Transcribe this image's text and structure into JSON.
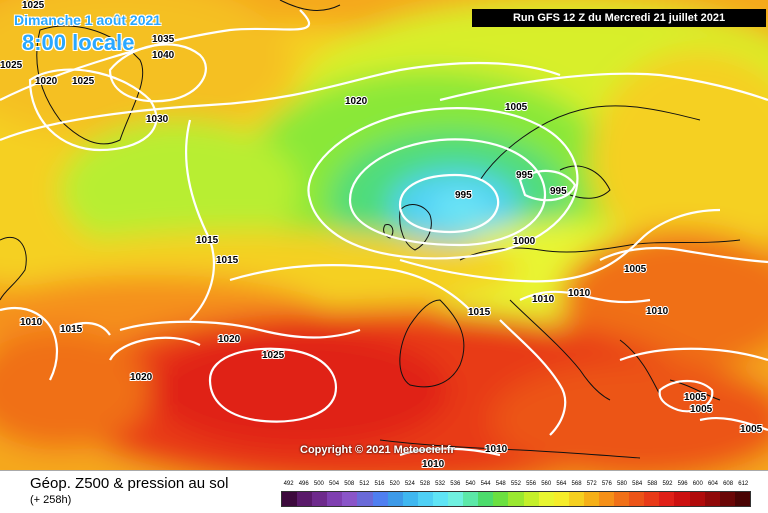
{
  "header": {
    "date": "Dimanche 1 août 2021",
    "time": "8:00 locale",
    "run_info": "Run GFS 12 Z du Mercredi 21 juillet 2021"
  },
  "copyright": "Copyright © 2021 Meteociel.fr",
  "legend": {
    "title": "Géop. Z500 & pression au sol",
    "subtitle": "(+ 258h)",
    "scale_values": [
      "492",
      "496",
      "500",
      "504",
      "508",
      "512",
      "516",
      "520",
      "524",
      "528",
      "532",
      "536",
      "540",
      "544",
      "548",
      "552",
      "556",
      "560",
      "564",
      "568",
      "572",
      "576",
      "580",
      "584",
      "588",
      "592",
      "596",
      "600",
      "604",
      "608",
      "612"
    ],
    "scale_colors": [
      "#3d0a3d",
      "#5a1a6a",
      "#6e2a8c",
      "#7f3fb0",
      "#8a55c8",
      "#6a6ad8",
      "#4f7ff0",
      "#3d9ae8",
      "#3fb7f0",
      "#4fd0f5",
      "#5fe4f5",
      "#6ff0e0",
      "#5ce8a8",
      "#4cdc6c",
      "#6be040",
      "#9ae830",
      "#c4ef2a",
      "#e8f530",
      "#f5ec2a",
      "#f5d020",
      "#f5b018",
      "#f59018",
      "#f07018",
      "#ec5418",
      "#e83a18",
      "#e02018",
      "#cc1010",
      "#b00a0a",
      "#900808",
      "#6a0606",
      "#4a0404"
    ]
  },
  "isobars": [
    "1025",
    "1035",
    "1040",
    "1025",
    "1020",
    "1025",
    "1030",
    "1020",
    "1005",
    "995",
    "995",
    "995",
    "1000",
    "1015",
    "1015",
    "1005",
    "1010",
    "1010",
    "1010",
    "1015",
    "1010",
    "1015",
    "1020",
    "1025",
    "1020",
    "1005",
    "1005",
    "1005",
    "1010",
    "1010"
  ]
}
